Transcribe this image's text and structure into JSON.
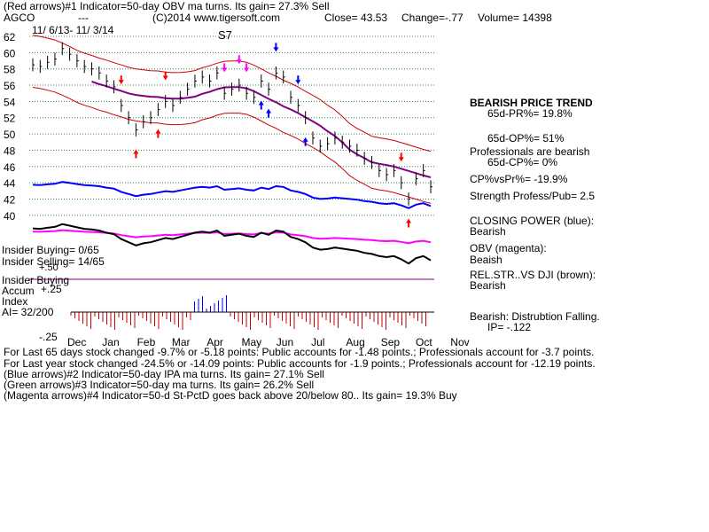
{
  "header": {
    "line1": "(Red arrows)#1 Indicator=50-day OBV ma turns. Its gain= 27.3% Sell",
    "ticker": "AGCO",
    "dashes": "---",
    "copyright": "(C)2014 www.tigersoft.com",
    "close": "Close= 43.53",
    "change": "Change=-.77",
    "volume": "Volume= 14398"
  },
  "date_range": "11/ 6/13- 11/ 3/14",
  "signal_label": "S7",
  "right_panel": {
    "trend_title": "BEARISH PRICE TREND",
    "pr": "65d-PR%= 19.8%",
    "op": "65d-OP%= 51%",
    "professionals": "Professionals are bearish",
    "cp": "65d-CP%= 0%",
    "cpvspr": "CP%vsPr%= -19.9%",
    "strength": "Strength Profess/Pub= 2.5",
    "closing_power": "CLOSING POWER (blue):",
    "closing_power_state": "Bearish",
    "obv": "OBV (magenta):",
    "obv_state": "Beaish",
    "relstr": "REL.STR..VS DJI (brown):",
    "relstr_state": "Bearish",
    "distribution": "Bearish: Distrubtion Falling.",
    "ip": "IP= -.122"
  },
  "left_panel": {
    "insider_buying_count": "Insider Buying= 0/65",
    "insider_selling_count": "Insider Selling= 14/65",
    "insider_buying": "Insider Buying",
    "accum": "Accum",
    "index": "Index",
    "ai": "AI= 32/200",
    "plus25": "+.25",
    "minus25": "-.25",
    "plus50": "+.50"
  },
  "footer": {
    "line1": "For Last 65 days stock changed -9.7% or -5.18 points:  Public accounts for -1.48 points.;  Professionals account for -3.7 points.",
    "line2": "For Last year stock changed -24.5% or -14.09 points:  Public accounts for -1.9 points.;  Professionals account for -12.19 points.",
    "line3": "(Blue arrows)#2 Indicator=50-day IPA ma turns. Its gain= 27.1% Sell",
    "line4": "(Green arrows)#3 Indicator=50-day ma turns. Its gain= 26.2% Sell",
    "line5": "(Magenta arrows)#4 Indicator=50-d St-PctD goes back above 20/below 80.. Its gain= 19.3% Buy"
  },
  "colors": {
    "grid": "#2e8b57",
    "price": "#000000",
    "band": "#cc0000",
    "ma50": "#800080",
    "closing_power": "#0000ff",
    "obv": "#ff00ff",
    "relstr": "#000000",
    "red_arrow": "#ff0000",
    "blue_arrow": "#0000ff",
    "magenta_arrow": "#ff00ff",
    "accum_bar": "#cc0000",
    "accum_pos": "#0000ff"
  },
  "chart_data": {
    "type": "line",
    "ylim": [
      39,
      62
    ],
    "y_ticks": [
      "62",
      "60",
      "58",
      "56",
      "54",
      "52",
      "50",
      "48",
      "46",
      "44",
      "42",
      "40"
    ],
    "months": [
      "Dec",
      "Jan",
      "Feb",
      "Mar",
      "Apr",
      "May",
      "Jun",
      "Jul",
      "Aug",
      "Sep",
      "Oct",
      "Nov"
    ],
    "series": [
      {
        "values": [
          58.5,
          58.3,
          58.8,
          59.2,
          60.5,
          59.8,
          59.0,
          58.3,
          58.0,
          57.5,
          56.5,
          55.8,
          53.5,
          52.0,
          50.5,
          51.5,
          52.0,
          53.0,
          54.0,
          53.5,
          54.5,
          55.5,
          56.5,
          57.0,
          56.5,
          57.5,
          55.0,
          55.5,
          56.0,
          55.0,
          54.5,
          56.5,
          55.5,
          57.5,
          57.0,
          54.5,
          53.5,
          52.0,
          49.5,
          48.5,
          48.8,
          49.5,
          49.0,
          48.5,
          48.0,
          47.0,
          46.5,
          45.5,
          45.0,
          45.5,
          44.0,
          42.0,
          44.5,
          45.5,
          43.5
        ]
      }
    ]
  }
}
